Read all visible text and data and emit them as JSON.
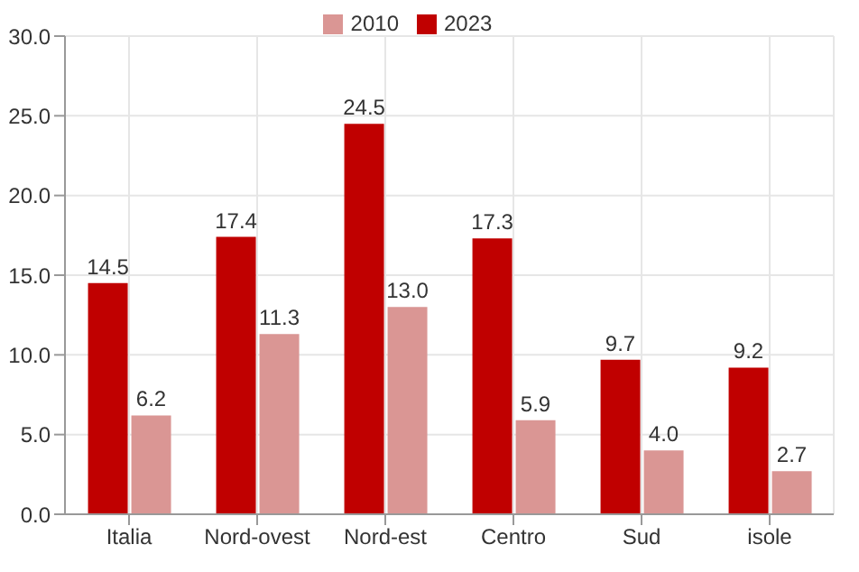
{
  "chart_data": {
    "type": "bar",
    "categories": [
      "Italia",
      "Nord-ovest",
      "Nord-est",
      "Centro",
      "Sud",
      "isole"
    ],
    "series": [
      {
        "name": "2023",
        "color": "#c00000",
        "values": [
          14.5,
          17.4,
          24.5,
          17.3,
          9.7,
          9.2
        ],
        "value_labels": [
          "14.5",
          "17.4",
          "24.5",
          "17.3",
          "9.7",
          "9.2"
        ]
      },
      {
        "name": "2010",
        "color": "#da9694",
        "values": [
          6.2,
          11.3,
          13.0,
          5.9,
          4.0,
          2.7
        ],
        "value_labels": [
          "6.2",
          "11.3",
          "13.0",
          "5.9",
          "4.0",
          "2.7"
        ]
      }
    ],
    "ylim": [
      0,
      30
    ],
    "yticks": [
      {
        "value": 0,
        "label": "0.0"
      },
      {
        "value": 5,
        "label": "5.0"
      },
      {
        "value": 10,
        "label": "10.0"
      },
      {
        "value": 15,
        "label": "15.0"
      },
      {
        "value": 20,
        "label": "20.0"
      },
      {
        "value": 25,
        "label": "25.0"
      },
      {
        "value": 30,
        "label": "30.0"
      }
    ],
    "grid": true,
    "legend": "top"
  }
}
